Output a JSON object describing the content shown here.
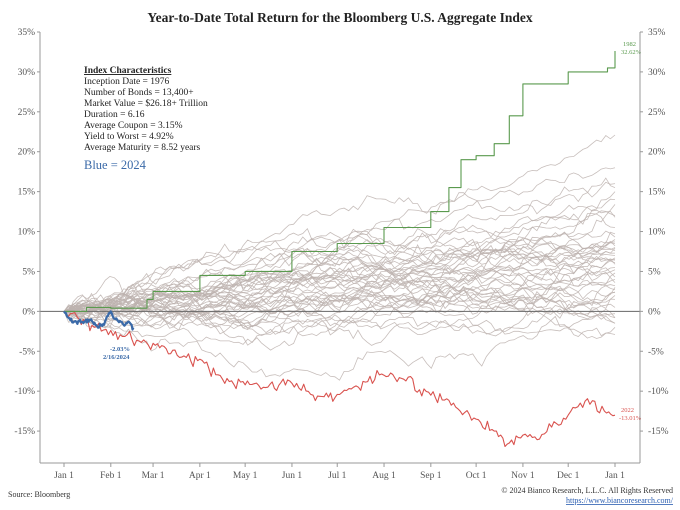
{
  "chart_data": {
    "type": "line",
    "title": "Year-to-Date Total Return for the Bloomberg U.S. Aggregate Index",
    "xlabel": "",
    "ylabel": "",
    "ylim": [
      -19,
      35
    ],
    "y_ticks": [
      35,
      30,
      25,
      20,
      15,
      10,
      5,
      0,
      -5,
      -10,
      -15
    ],
    "y_tick_labels": [
      "35%",
      "30%",
      "25%",
      "20%",
      "15%",
      "10%",
      "5%",
      "0%",
      "-5%",
      "-10%",
      "-15%"
    ],
    "right_y_tick_labels": [
      "35%",
      "30%",
      "25%",
      "20%",
      "15%",
      "10%",
      "5%",
      "0%",
      "-5%",
      "-10%",
      "-15%"
    ],
    "x_tick_labels": [
      "Jan 1",
      "Feb 1",
      "Mar 1",
      "Apr 1",
      "May 1",
      "Jun 1",
      "Jul 1",
      "Aug 1",
      "Sep 1",
      "Oct 1",
      "Nov 1",
      "Dec 1",
      "Jan 1"
    ],
    "x_tick_days": [
      0,
      31,
      59,
      90,
      120,
      151,
      181,
      212,
      243,
      273,
      304,
      334,
      365
    ],
    "background_series_year_ends": [
      22.1,
      18.0,
      16.0,
      15.5,
      15.0,
      14.0,
      13.4,
      12.0,
      11.8,
      10.5,
      9.7,
      9.3,
      9.0,
      8.7,
      8.5,
      8.2,
      7.9,
      7.6,
      7.3,
      7.0,
      6.7,
      6.4,
      6.1,
      5.9,
      5.5,
      5.2,
      4.8,
      4.3,
      4.0,
      3.6,
      3.2,
      2.7,
      2.4,
      2.0,
      1.5,
      0.5,
      -0.3,
      -0.8,
      -1.5,
      -2.0,
      -2.9,
      -1.5,
      2.4,
      -0.8,
      6.5,
      3.0,
      8.0
    ],
    "series": [
      {
        "name": "1982",
        "label": "1982",
        "end_label": "32.62%",
        "color": "#5a9a4e",
        "step_points": [
          [
            0,
            0
          ],
          [
            15,
            0.5
          ],
          [
            31,
            0.4
          ],
          [
            55,
            1.5
          ],
          [
            59,
            2.5
          ],
          [
            90,
            4.5
          ],
          [
            120,
            5.0
          ],
          [
            151,
            7.5
          ],
          [
            181,
            8.5
          ],
          [
            212,
            10.5
          ],
          [
            243,
            12.5
          ],
          [
            255,
            15.5
          ],
          [
            263,
            19.0
          ],
          [
            273,
            19.5
          ],
          [
            285,
            21.0
          ],
          [
            295,
            24.5
          ],
          [
            304,
            28.5
          ],
          [
            334,
            30.0
          ],
          [
            360,
            30.5
          ],
          [
            365,
            32.62
          ]
        ]
      },
      {
        "name": "2022",
        "label": "2022",
        "end_label": "-13.01%",
        "color": "#d9534f",
        "anchor_points": [
          [
            0,
            0
          ],
          [
            10,
            -1.0
          ],
          [
            20,
            -2.0
          ],
          [
            31,
            -2.4
          ],
          [
            45,
            -3.5
          ],
          [
            59,
            -4.0
          ],
          [
            75,
            -5.5
          ],
          [
            90,
            -6.0
          ],
          [
            105,
            -8.5
          ],
          [
            120,
            -9.2
          ],
          [
            135,
            -9.5
          ],
          [
            151,
            -9.0
          ],
          [
            165,
            -10.5
          ],
          [
            181,
            -10.4
          ],
          [
            195,
            -9.5
          ],
          [
            212,
            -8.0
          ],
          [
            225,
            -8.5
          ],
          [
            243,
            -10.5
          ],
          [
            258,
            -11.5
          ],
          [
            273,
            -13.5
          ],
          [
            285,
            -15.0
          ],
          [
            295,
            -16.5
          ],
          [
            304,
            -15.5
          ],
          [
            315,
            -16.0
          ],
          [
            323,
            -14.5
          ],
          [
            334,
            -13.0
          ],
          [
            342,
            -11.5
          ],
          [
            350,
            -11.2
          ],
          [
            358,
            -12.5
          ],
          [
            365,
            -13.01
          ]
        ]
      },
      {
        "name": "2024",
        "label": "Blue = 2024",
        "end_label": "-2.03%",
        "end_date": "2/16/2024",
        "color": "#3b6aa8",
        "anchor_points": [
          [
            0,
            0
          ],
          [
            3,
            -0.8
          ],
          [
            6,
            -1.4
          ],
          [
            10,
            -1.2
          ],
          [
            14,
            -1.3
          ],
          [
            18,
            -1.0
          ],
          [
            22,
            -1.9
          ],
          [
            26,
            -1.6
          ],
          [
            29,
            -0.6
          ],
          [
            31,
            0.0
          ],
          [
            33,
            -0.9
          ],
          [
            37,
            -1.2
          ],
          [
            40,
            -1.8
          ],
          [
            43,
            -1.3
          ],
          [
            46,
            -2.03
          ]
        ]
      }
    ]
  },
  "annotations": {
    "box_title": "Index Characteristics",
    "box_lines": [
      "Inception Date = 1976",
      "Number of Bonds = 13,400+",
      "Market Value = $26.18+ Trillion",
      "Duration = 6.16",
      "Average Coupon = 3.15%",
      "Yield to Worst = 4.92%",
      "Average Maturity = 8.52 years"
    ],
    "blue_label": "Blue = 2024",
    "label_1982": "1982",
    "value_1982": "32.62%",
    "label_2022": "2022",
    "value_2022": "-13.01%",
    "value_2024": "-2.03%",
    "date_2024": "2/16/2024"
  },
  "footer": {
    "source": "Source: Bloomberg",
    "copyright": "© 2024 Bianco Research, L.L.C. All Rights Reserved",
    "url": "https://www.biancoresearch.com/"
  },
  "colors": {
    "gray_lines": "#bdb3af",
    "axis": "#888888",
    "zero_line": "#666666"
  }
}
